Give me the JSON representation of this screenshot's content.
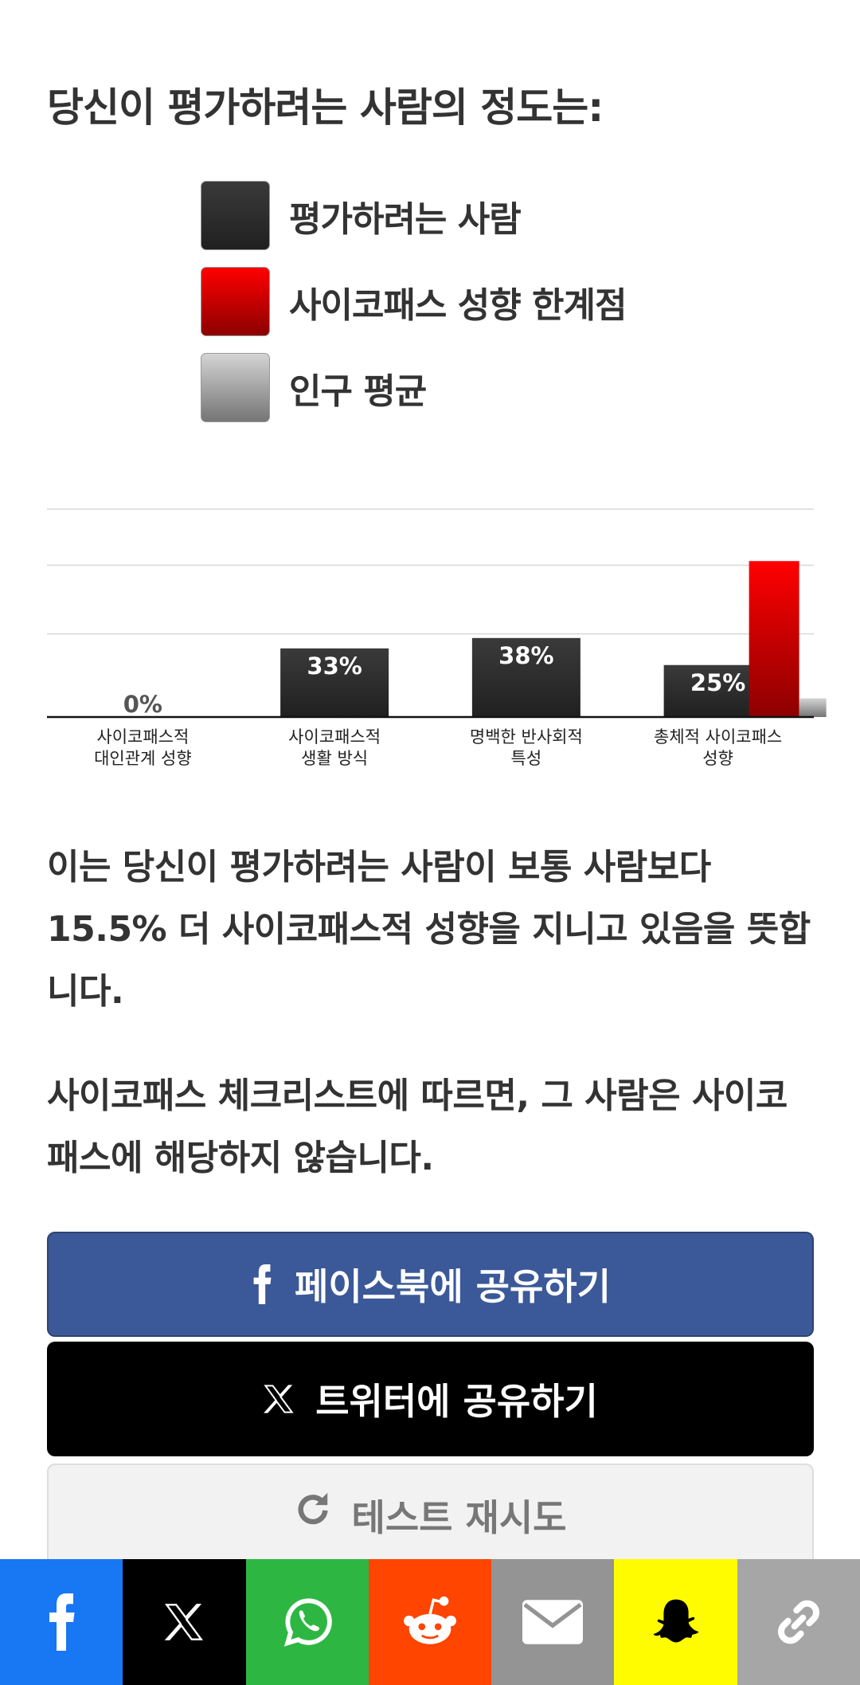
{
  "heading": "당신이 평가하려는 사람의 정도는:",
  "chart_data": {
    "type": "bar",
    "categories": [
      "사이코패스적\n대인관계 성향",
      "사이코패스적\n생활 방식",
      "명백한 반사회적\n특성",
      "총체적 사이코패스\n성향"
    ],
    "series": [
      {
        "name": "평가하려는 사람",
        "color": "#3a3a3a",
        "values": [
          0,
          33,
          38,
          25
        ],
        "value_labels": [
          "0%",
          "33%",
          "38%",
          "25%"
        ]
      },
      {
        "name": "사이코패스 성향 한계점",
        "color": "#ff0000",
        "values": [
          null,
          null,
          null,
          75
        ]
      },
      {
        "name": "인구 평균",
        "color": "#d4d4d4",
        "values": [
          null,
          null,
          null,
          9
        ]
      }
    ],
    "ylim": [
      0,
      100
    ],
    "yticks": [
      40,
      73,
      100
    ],
    "tick_labels": false,
    "grid": true
  },
  "result": {
    "paragraphs": [
      "이는 당신이 평가하려는 사람이 보통 사람보다 15.5% 더 사이코패스적 성향을 지니고 있음을 뜻합니다.",
      "사이코패스 체크리스트에 따르면, 그 사람은 사이코패스에 해당하지 않습니다."
    ]
  },
  "buttons": {
    "facebook": "페이스북에 공유하기",
    "twitter": "트위터에 공유하기",
    "retry": "테스트 재시도"
  }
}
